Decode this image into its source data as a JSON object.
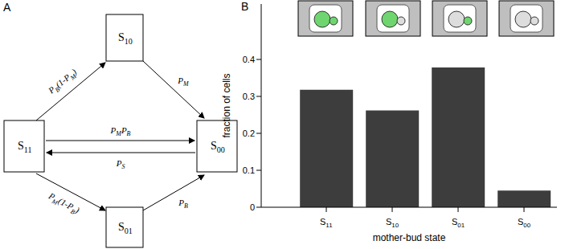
{
  "diagram": {
    "panel": "A",
    "nodes": [
      {
        "label": "S11"
      },
      {
        "label": "S10"
      },
      {
        "label": "S00"
      },
      {
        "label": "S01"
      }
    ],
    "edges": [
      {
        "from": "S11",
        "to": "S10",
        "label": "PB(1-PM)"
      },
      {
        "from": "S10",
        "to": "S00",
        "label": "PM"
      },
      {
        "from": "S11",
        "to": "S00",
        "label": "PMPB"
      },
      {
        "from": "S00",
        "to": "S11",
        "label": "PS"
      },
      {
        "from": "S11",
        "to": "S01",
        "label": "PM(1-PB)"
      },
      {
        "from": "S01",
        "to": "S00",
        "label": "PB"
      }
    ]
  },
  "chart_data": {
    "panel": "B",
    "type": "bar",
    "categories": [
      "S11",
      "S10",
      "S01",
      "S00"
    ],
    "values": [
      0.318,
      0.262,
      0.378,
      0.045
    ],
    "color": "#3d3d3d",
    "ylim": [
      0,
      0.55
    ],
    "yticks": [
      0,
      0.1,
      0.2,
      0.3,
      0.4
    ],
    "x_label": "mother-bud state",
    "y_label": "fraction of cells"
  }
}
